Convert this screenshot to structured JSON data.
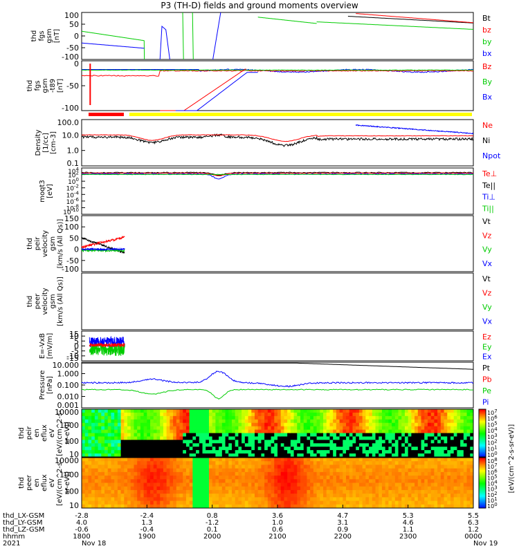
{
  "chart_data": {
    "type": "line",
    "title": "P3 (TH-D) fields and ground moments overview",
    "x_axis": {
      "ticks": [
        "1800",
        "1900",
        "2000",
        "2100",
        "2200",
        "2300",
        "0000"
      ],
      "orbit_labels": [
        "thd_LX-GSM",
        "thd_LY-GSM",
        "thd_LZ-GSM",
        "hhmm",
        "2021"
      ],
      "orbit_values": [
        [
          "-2.8",
          "4.0",
          "-0.6",
          "1800",
          "Nov 18"
        ],
        [
          "-2.4",
          "1.3",
          "-0.4",
          "1900",
          ""
        ],
        [
          "0.8",
          "-1.2",
          "0.1",
          "2000",
          ""
        ],
        [
          "3.6",
          "1.0",
          "0.6",
          "2100",
          ""
        ],
        [
          "4.7",
          "3.1",
          "0.9",
          "2200",
          ""
        ],
        [
          "5.3",
          "4.6",
          "1.1",
          "2300",
          ""
        ],
        [
          "5.5",
          "6.3",
          "1.2",
          "0000",
          "Nov 19"
        ]
      ]
    },
    "panels": [
      {
        "id": "fgs",
        "ylabel": [
          "thd",
          "fgs",
          "gsm",
          "[nT]"
        ],
        "ylim": [
          -100,
          100
        ],
        "ticks": [
          "100",
          "50",
          "0",
          "-50",
          "-100"
        ],
        "series": [
          {
            "name": "Bt",
            "color": "#000000"
          },
          {
            "name": "bz",
            "color": "#ff0000"
          },
          {
            "name": "by",
            "color": "#00cc00"
          },
          {
            "name": "bx",
            "color": "#0000ff"
          }
        ]
      },
      {
        "id": "fgs-dipole",
        "ylabel": [
          "thd",
          "fgs",
          "gsm",
          "-t89",
          "[nT]"
        ],
        "ylim": [
          -125,
          25
        ],
        "ticks": [
          "0",
          "-50",
          "-100"
        ],
        "series": [
          {
            "name": "Bz",
            "color": "#ff0000"
          },
          {
            "name": "By",
            "color": "#00cc00"
          },
          {
            "name": "Bx",
            "color": "#0000ff"
          }
        ]
      },
      {
        "id": "density",
        "ylabel": [
          "Density",
          "[1/cc]",
          "[cm-3]"
        ],
        "log": true,
        "ticks": [
          "100.0",
          "10.0",
          "1.0",
          "0.1"
        ],
        "series": [
          {
            "name": "Ne",
            "color": "#ff0000"
          },
          {
            "name": "Ni",
            "color": "#000000"
          },
          {
            "name": "Npot",
            "color": "#0000ff"
          }
        ]
      },
      {
        "id": "temp",
        "ylabel": [
          "moqt3",
          "[eV]"
        ],
        "log": true,
        "ticks": [
          "10^4",
          "10^2",
          "10^0",
          "10^-2",
          "10^-4",
          "10^-6",
          "10^-8",
          "10^-10"
        ],
        "series": [
          {
            "name": "Te⊥",
            "color": "#ff0000"
          },
          {
            "name": "Te||",
            "color": "#000000"
          },
          {
            "name": "Ti⊥",
            "color": "#0000ff"
          },
          {
            "name": "Ti||",
            "color": "#00cc00"
          }
        ]
      },
      {
        "id": "ion-vel",
        "ylabel": [
          "thd",
          "peir",
          "velocity",
          "gsm",
          "[km/s (All Qs)]"
        ],
        "ylim": [
          -100,
          150
        ],
        "ticks": [
          "150",
          "100",
          "50",
          "0",
          "-50",
          "-100"
        ],
        "series": [
          {
            "name": "Vt",
            "color": "#000000"
          },
          {
            "name": "Vz",
            "color": "#ff0000"
          },
          {
            "name": "Vy",
            "color": "#00cc00"
          },
          {
            "name": "Vx",
            "color": "#0000ff"
          }
        ]
      },
      {
        "id": "ele-vel",
        "ylabel": [
          "thd",
          "peer",
          "velocity",
          "gsm",
          "[km/s (All Qs)]"
        ],
        "ticks": [],
        "series": [
          {
            "name": "Vt",
            "color": "#000000"
          },
          {
            "name": "Vz",
            "color": "#ff0000"
          },
          {
            "name": "Vy",
            "color": "#00cc00"
          },
          {
            "name": "Vx",
            "color": "#0000ff"
          }
        ]
      },
      {
        "id": "efield",
        "ylabel": [
          "E=-VxB",
          "[mV/m]"
        ],
        "ylim": [
          -15,
          15
        ],
        "ticks": [
          "15",
          "10",
          "5",
          "0",
          "-5",
          "-10",
          "-15"
        ],
        "series": [
          {
            "name": "Ez",
            "color": "#ff0000"
          },
          {
            "name": "Ey",
            "color": "#00cc00"
          },
          {
            "name": "Ex",
            "color": "#0000ff"
          }
        ]
      },
      {
        "id": "pressure",
        "ylabel": [
          "Pressure",
          "[nPa]"
        ],
        "log": true,
        "ticks": [
          "10.000",
          "1.000",
          "0.100",
          "0.010",
          "0.001"
        ],
        "series": [
          {
            "name": "Pt",
            "color": "#000000"
          },
          {
            "name": "Pb",
            "color": "#ff0000"
          },
          {
            "name": "Pe",
            "color": "#00cc00"
          },
          {
            "name": "Pi",
            "color": "#0000ff"
          }
        ]
      },
      {
        "id": "ion-spec",
        "type": "heatmap",
        "ylabel": [
          "thd",
          "peir",
          "en",
          "eflux",
          "eV",
          "[eV/(cm^2-s-",
          "sr-eV)]"
        ],
        "ticks": [
          "10000",
          "1000",
          "100",
          "10"
        ]
      },
      {
        "id": "ele-spec",
        "type": "heatmap",
        "ylabel": [
          "thd",
          "peer",
          "en",
          "eflux",
          "eV",
          "[eV/(cm^2-s-",
          "sr-eV)]"
        ],
        "ticks": [
          "10000",
          "1000",
          "100",
          "10"
        ]
      }
    ],
    "colorbar": {
      "label": "[eV/(cm^2-s-sr-eV)]",
      "ion_ticks": [
        "10^7",
        "10^6",
        "10^5",
        "10^4",
        "10^3",
        "10^2",
        "10^1",
        "10^0"
      ],
      "ele_ticks": [
        "10^8",
        "10^7",
        "10^6",
        "10^5",
        "10^4",
        "10^3",
        "10^2",
        "10^1",
        "10^0"
      ]
    },
    "mode_bar": {
      "colors": [
        "#ff0000",
        "#ffff00"
      ],
      "split_fraction": 0.09
    }
  }
}
